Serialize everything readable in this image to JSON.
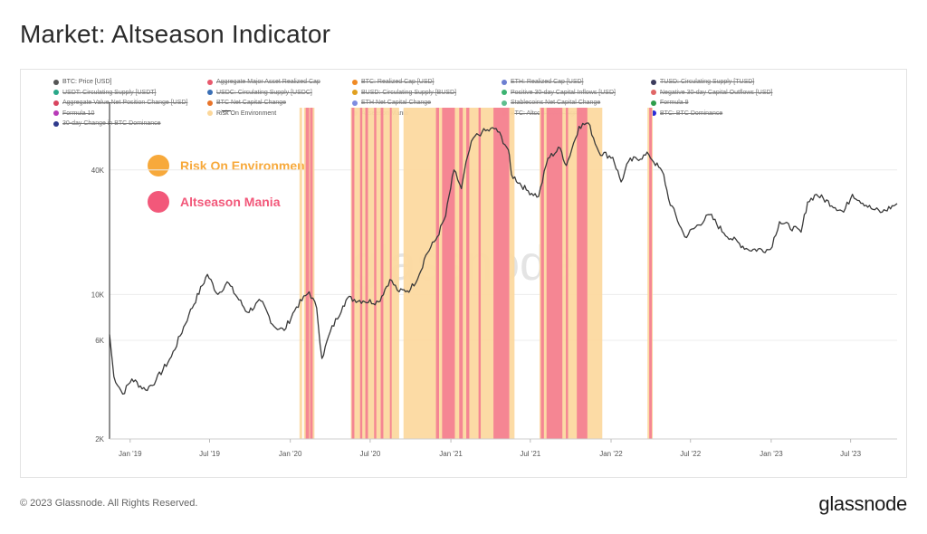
{
  "title": "Market: Altseason Indicator",
  "footer": {
    "copyright": "© 2023 Glassnode. All Rights Reserved.",
    "logo": "glassnode"
  },
  "watermark": "glassnode",
  "callouts": [
    {
      "label": "Risk On Environment",
      "color": "#f7a93b"
    },
    {
      "label": "Altseason Mania",
      "color": "#f2587a"
    }
  ],
  "legend": [
    {
      "label": "BTC: Price [USD]",
      "color": "#555555",
      "active": true
    },
    {
      "label": "Aggregate Major Asset Realized Cap",
      "color": "#e8596d",
      "active": false
    },
    {
      "label": "BTC: Realized Cap [USD]",
      "color": "#f08a24",
      "active": false
    },
    {
      "label": "ETH: Realized Cap [USD]",
      "color": "#6c7fd1",
      "active": false
    },
    {
      "label": "TUSD: Circulating Supply [TUSD]",
      "color": "#3b3b5c",
      "active": false
    },
    {
      "label": "USDT: Circulating Supply [USDT]",
      "color": "#2aa889",
      "active": false
    },
    {
      "label": "USDC: Circulating Supply [USDC]",
      "color": "#3a6fb5",
      "active": false
    },
    {
      "label": "BUSD: Circulating Supply [BUSD]",
      "color": "#e0a020",
      "active": false
    },
    {
      "label": "Positive 30-day Capital Inflows [USD]",
      "color": "#3cb371",
      "active": false
    },
    {
      "label": "Negative 30-day Capital Outflows [USD]",
      "color": "#e06666",
      "active": false
    },
    {
      "label": "Aggregate Value Net Position Change [USD]",
      "color": "#d9455f",
      "active": false
    },
    {
      "label": "BTC Net Capital Change",
      "color": "#e8742a",
      "active": false
    },
    {
      "label": "ETH Net Capital Change",
      "color": "#7f8de0",
      "active": false
    },
    {
      "label": "Stablecoins Net Capital Change",
      "color": "#5fbf8f",
      "active": false
    },
    {
      "label": "Formula 9",
      "color": "#2e9e4a",
      "active": false
    },
    {
      "label": "Formula 10",
      "color": "#b83ab8",
      "active": false
    },
    {
      "label": "Risk On Environment",
      "color": "#fcd79a",
      "active": true
    },
    {
      "label": "Altseason Mania",
      "color": "#f7a3b3",
      "active": true
    },
    {
      "label": "BTC: Altcoin Cycle Signal",
      "color": "#e07a2a",
      "active": false
    },
    {
      "label": "BTC: BTC Dominance",
      "color": "#2a2ad8",
      "active": false
    },
    {
      "label": "30-day Change in BTC Dominance",
      "color": "#2e3a8c",
      "active": false
    }
  ],
  "chart_data": {
    "type": "line",
    "x_type": "date",
    "y_scale": "log",
    "ylim": [
      2000,
      80000
    ],
    "xlim": [
      "2018-11-15",
      "2023-10-15"
    ],
    "y_ticks": [
      {
        "value": 2000,
        "label": "2K"
      },
      {
        "value": 6000,
        "label": "6K"
      },
      {
        "value": 10000,
        "label": "10K"
      },
      {
        "value": 40000,
        "label": "40K"
      }
    ],
    "x_ticks": [
      {
        "value": "2019-01-01",
        "label": "Jan '19"
      },
      {
        "value": "2019-07-01",
        "label": "Jul '19"
      },
      {
        "value": "2020-01-01",
        "label": "Jan '20"
      },
      {
        "value": "2020-07-01",
        "label": "Jul '20"
      },
      {
        "value": "2021-01-01",
        "label": "Jan '21"
      },
      {
        "value": "2021-07-01",
        "label": "Jul '21"
      },
      {
        "value": "2022-01-01",
        "label": "Jan '22"
      },
      {
        "value": "2022-07-01",
        "label": "Jul '22"
      },
      {
        "value": "2023-01-01",
        "label": "Jan '23"
      },
      {
        "value": "2023-07-01",
        "label": "Jul '23"
      }
    ],
    "series": [
      {
        "name": "BTC: Price [USD]",
        "color": "#3a3a3a",
        "points": [
          [
            "2018-11-15",
            6400
          ],
          [
            "2018-11-25",
            4000
          ],
          [
            "2018-12-15",
            3300
          ],
          [
            "2019-01-05",
            3900
          ],
          [
            "2019-02-05",
            3450
          ],
          [
            "2019-03-01",
            3850
          ],
          [
            "2019-04-05",
            5000
          ],
          [
            "2019-05-15",
            8000
          ],
          [
            "2019-06-26",
            12500
          ],
          [
            "2019-07-20",
            10000
          ],
          [
            "2019-08-10",
            11500
          ],
          [
            "2019-09-25",
            8200
          ],
          [
            "2019-10-26",
            9300
          ],
          [
            "2019-11-25",
            7000
          ],
          [
            "2019-12-18",
            6700
          ],
          [
            "2020-01-15",
            8700
          ],
          [
            "2020-02-13",
            10300
          ],
          [
            "2020-03-01",
            8600
          ],
          [
            "2020-03-13",
            4900
          ],
          [
            "2020-04-01",
            6600
          ],
          [
            "2020-04-30",
            8800
          ],
          [
            "2020-05-10",
            9600
          ],
          [
            "2020-06-15",
            9300
          ],
          [
            "2020-07-20",
            9200
          ],
          [
            "2020-08-15",
            11800
          ],
          [
            "2020-09-05",
            10300
          ],
          [
            "2020-10-01",
            10600
          ],
          [
            "2020-10-21",
            12500
          ],
          [
            "2020-11-05",
            15500
          ],
          [
            "2020-12-01",
            19000
          ],
          [
            "2020-12-20",
            24000
          ],
          [
            "2021-01-08",
            40000
          ],
          [
            "2021-01-25",
            32500
          ],
          [
            "2021-02-08",
            46500
          ],
          [
            "2021-02-21",
            57000
          ],
          [
            "2021-03-13",
            61000
          ],
          [
            "2021-04-14",
            63500
          ],
          [
            "2021-05-12",
            50000
          ],
          [
            "2021-05-19",
            38000
          ],
          [
            "2021-06-22",
            32000
          ],
          [
            "2021-07-20",
            29800
          ],
          [
            "2021-08-10",
            45500
          ],
          [
            "2021-09-07",
            51000
          ],
          [
            "2021-09-21",
            42000
          ],
          [
            "2021-10-20",
            65000
          ],
          [
            "2021-11-10",
            67500
          ],
          [
            "2021-12-04",
            49000
          ],
          [
            "2022-01-05",
            46000
          ],
          [
            "2022-01-24",
            35000
          ],
          [
            "2022-02-10",
            44000
          ],
          [
            "2022-03-28",
            47500
          ],
          [
            "2022-05-01",
            38000
          ],
          [
            "2022-05-12",
            29000
          ],
          [
            "2022-06-18",
            19000
          ],
          [
            "2022-08-14",
            24300
          ],
          [
            "2022-09-15",
            19800
          ],
          [
            "2022-11-09",
            16500
          ],
          [
            "2022-12-30",
            16500
          ],
          [
            "2023-01-20",
            22500
          ],
          [
            "2023-03-10",
            20000
          ],
          [
            "2023-03-25",
            28000
          ],
          [
            "2023-04-14",
            30500
          ],
          [
            "2023-06-15",
            25000
          ],
          [
            "2023-07-05",
            30500
          ],
          [
            "2023-08-17",
            26000
          ],
          [
            "2023-09-11",
            25000
          ],
          [
            "2023-10-15",
            27500
          ]
        ]
      }
    ],
    "bands": [
      {
        "name": "Risk On Environment",
        "color": "#fcd9a0",
        "ranges": [
          [
            "2020-01-22",
            "2020-01-28"
          ],
          [
            "2020-02-01",
            "2020-02-25"
          ],
          [
            "2020-05-18",
            "2020-09-05"
          ],
          [
            "2020-09-15",
            "2021-05-26"
          ],
          [
            "2021-07-22",
            "2021-12-12"
          ],
          [
            "2022-03-25",
            "2022-04-06"
          ]
        ]
      },
      {
        "name": "Altseason Mania",
        "color": "#f47c91",
        "ranges": [
          [
            "2020-02-05",
            "2020-02-13"
          ],
          [
            "2020-02-15",
            "2020-02-21"
          ],
          [
            "2020-05-20",
            "2020-05-26"
          ],
          [
            "2020-06-08",
            "2020-06-13"
          ],
          [
            "2020-06-20",
            "2020-06-26"
          ],
          [
            "2020-07-10",
            "2020-07-15"
          ],
          [
            "2020-07-25",
            "2020-07-31"
          ],
          [
            "2020-08-15",
            "2020-08-19"
          ],
          [
            "2020-11-28",
            "2020-12-05"
          ],
          [
            "2020-12-12",
            "2021-01-10"
          ],
          [
            "2021-01-20",
            "2021-01-28"
          ],
          [
            "2021-02-05",
            "2021-02-12"
          ],
          [
            "2021-03-05",
            "2021-03-10"
          ],
          [
            "2021-04-08",
            "2021-05-14"
          ],
          [
            "2021-07-25",
            "2021-08-01"
          ],
          [
            "2021-08-07",
            "2021-09-12"
          ],
          [
            "2021-09-20",
            "2021-09-25"
          ],
          [
            "2021-10-15",
            "2021-11-08"
          ],
          [
            "2022-03-29",
            "2022-04-04"
          ]
        ]
      }
    ]
  }
}
